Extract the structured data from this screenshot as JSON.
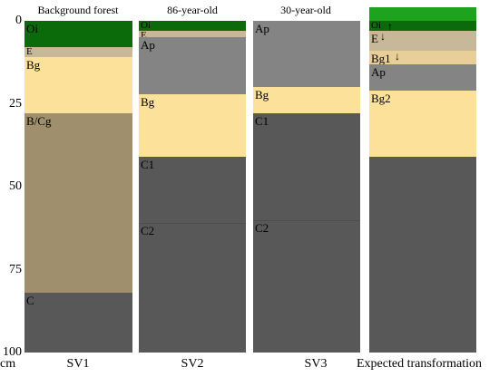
{
  "depth_axis": {
    "unit": "cm",
    "ticks": [
      "0",
      "25",
      "50",
      "75",
      "100"
    ]
  },
  "profiles": [
    {
      "title": "Background forest",
      "name": "SV1",
      "layers": [
        {
          "label": "Oi",
          "top_cm": 0,
          "bottom_cm": 8,
          "color": "#0b6b0b"
        },
        {
          "label": "E",
          "top_cm": 8,
          "bottom_cm": 11,
          "color": "#c8b89a"
        },
        {
          "label": "Bg",
          "top_cm": 11,
          "bottom_cm": 28,
          "color": "#fbe19a"
        },
        {
          "label": "B/Cg",
          "top_cm": 28,
          "bottom_cm": 82,
          "color": "#a08f6c"
        },
        {
          "label": "C",
          "top_cm": 82,
          "bottom_cm": 100,
          "color": "#585858"
        }
      ]
    },
    {
      "title": "86-year-old",
      "name": "SV2",
      "layers": [
        {
          "label": "Oi",
          "top_cm": 0,
          "bottom_cm": 3,
          "color": "#0b6b0b"
        },
        {
          "label": "E",
          "top_cm": 3,
          "bottom_cm": 5,
          "color": "#c8b89a"
        },
        {
          "label": "Ap",
          "top_cm": 5,
          "bottom_cm": 22,
          "color": "#848484"
        },
        {
          "label": "Bg",
          "top_cm": 22,
          "bottom_cm": 41,
          "color": "#fbe19a"
        },
        {
          "label": "C1",
          "top_cm": 41,
          "bottom_cm": 61,
          "color": "#585858"
        },
        {
          "label": "C2",
          "top_cm": 61,
          "bottom_cm": 100,
          "color": "#585858"
        }
      ]
    },
    {
      "title": "30-year-old",
      "name": "SV3",
      "layers": [
        {
          "label": "Ap",
          "top_cm": 0,
          "bottom_cm": 20,
          "color": "#848484"
        },
        {
          "label": "Bg",
          "top_cm": 20,
          "bottom_cm": 28,
          "color": "#fbe19a"
        },
        {
          "label": "C1",
          "top_cm": 28,
          "bottom_cm": 60,
          "color": "#585858"
        },
        {
          "label": "C2",
          "top_cm": 60,
          "bottom_cm": 100,
          "color": "#585858"
        }
      ]
    },
    {
      "title": "",
      "name": "Expected transformation",
      "layers": [
        {
          "label": "",
          "top_cm": -4,
          "bottom_cm": 0,
          "color": "#1fa31f"
        },
        {
          "label": "Oi",
          "top_cm": 0,
          "bottom_cm": 3,
          "color": "#0b6b0b",
          "arrow": "↑"
        },
        {
          "label": "E",
          "top_cm": 3,
          "bottom_cm": 9,
          "color": "#c8b89a",
          "arrow": "↓"
        },
        {
          "label": "Bg1",
          "top_cm": 9,
          "bottom_cm": 13,
          "color": "#e8cf9a",
          "arrow": "↓"
        },
        {
          "label": "Ap",
          "top_cm": 13,
          "bottom_cm": 21,
          "color": "#848484"
        },
        {
          "label": "Bg2",
          "top_cm": 21,
          "bottom_cm": 41,
          "color": "#fbe19a"
        },
        {
          "label": "",
          "top_cm": 41,
          "bottom_cm": 100,
          "color": "#585858"
        }
      ]
    }
  ]
}
